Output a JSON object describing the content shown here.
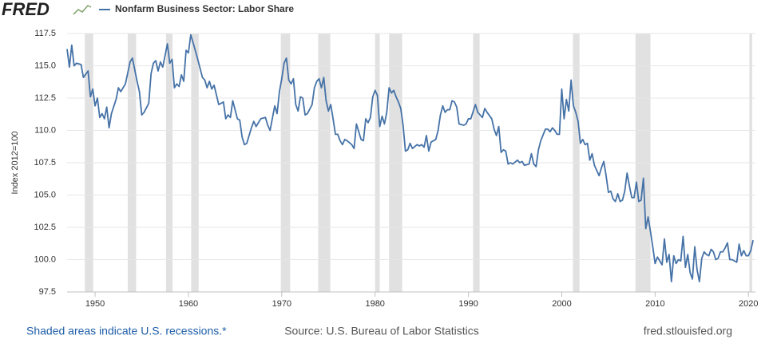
{
  "logo": "FRED",
  "footer": {
    "note": "Shaded areas indicate U.S. recessions.*",
    "source": "Source: U.S. Bureau of Labor Statistics",
    "site": "fred.stlouisfed.org"
  },
  "chart_data": {
    "type": "line",
    "y_label": "Index 2012=100",
    "x": [
      1947,
      1947.25,
      1947.5,
      1947.75,
      1948,
      1948.5,
      1948.75,
      1949.25,
      1949.5,
      1949.75,
      1950,
      1950.25,
      1950.5,
      1950.75,
      1951,
      1951.25,
      1951.5,
      1951.75,
      1952.25,
      1952.5,
      1952.75,
      1953.25,
      1953.75,
      1954,
      1954.5,
      1954.75,
      1955,
      1955.25,
      1955.75,
      1956,
      1956.25,
      1956.5,
      1956.75,
      1957,
      1957.25,
      1957.75,
      1958,
      1958.25,
      1958.5,
      1958.75,
      1959,
      1959.25,
      1959.5,
      1959.75,
      1960,
      1960.25,
      1960.5,
      1961,
      1961.5,
      1961.75,
      1962,
      1962.25,
      1962.5,
      1962.75,
      1963.25,
      1963.75,
      1964,
      1964.25,
      1964.5,
      1964.75,
      1965.25,
      1965.5,
      1965.75,
      1966,
      1966.25,
      1966.75,
      1967,
      1967.25,
      1967.75,
      1968.25,
      1968.5,
      1968.75,
      1969.25,
      1969.5,
      1969.75,
      1970,
      1970.25,
      1970.5,
      1970.75,
      1971,
      1971.25,
      1971.5,
      1971.75,
      1972,
      1972.25,
      1972.5,
      1972.75,
      1973.25,
      1973.5,
      1973.75,
      1974,
      1974.25,
      1974.5,
      1974.75,
      1975,
      1975.25,
      1975.5,
      1975.75,
      1976,
      1976.25,
      1976.5,
      1976.75,
      1977,
      1977.5,
      1977.75,
      1978,
      1978.5,
      1978.75,
      1979,
      1979.25,
      1979.5,
      1979.75,
      1980,
      1980.25,
      1980.5,
      1980.75,
      1981,
      1981.25,
      1981.5,
      1981.75,
      1982,
      1982.25,
      1982.5,
      1982.75,
      1983,
      1983.25,
      1983.5,
      1983.75,
      1984,
      1984.5,
      1984.75,
      1985,
      1985.25,
      1985.5,
      1985.75,
      1986,
      1986.5,
      1986.75,
      1987,
      1987.25,
      1987.5,
      1987.75,
      1988,
      1988.25,
      1988.5,
      1988.75,
      1989,
      1989.5,
      1989.75,
      1990,
      1990.25,
      1990.75,
      1991,
      1991.25,
      1991.5,
      1991.75,
      1992,
      1992.5,
      1992.75,
      1993,
      1993.25,
      1993.5,
      1993.75,
      1994,
      1994.25,
      1994.5,
      1994.75,
      1995.25,
      1995.5,
      1995.75,
      1996,
      1996.5,
      1996.75,
      1997,
      1997.25,
      1997.5,
      1997.75,
      1998.25,
      1998.5,
      1998.75,
      1999,
      1999.25,
      1999.5,
      1999.75,
      2000,
      2000.25,
      2000.5,
      2000.75,
      2001,
      2001.25,
      2001.5,
      2001.75,
      2002,
      2002.25,
      2002.5,
      2002.75,
      2003,
      2003.25,
      2003.5,
      2003.75,
      2004,
      2004.25,
      2004.5,
      2004.75,
      2005,
      2005.25,
      2005.5,
      2005.75,
      2006,
      2006.25,
      2006.5,
      2006.75,
      2007,
      2007.25,
      2007.5,
      2007.75,
      2008,
      2008.25,
      2008.5,
      2008.75,
      2009,
      2009.25,
      2009.5,
      2009.75,
      2010,
      2010.25,
      2010.5,
      2010.75,
      2011,
      2011.25,
      2011.5,
      2011.75,
      2012,
      2012.25,
      2012.5,
      2012.75,
      2013,
      2013.25,
      2013.5,
      2013.75,
      2014,
      2014.25,
      2014.5,
      2014.75,
      2015,
      2015.25,
      2015.5,
      2015.75,
      2016,
      2016.25,
      2016.5,
      2016.75,
      2017,
      2017.25,
      2017.5,
      2017.75,
      2018,
      2018.25,
      2018.5,
      2018.75,
      2019,
      2019.25,
      2019.5,
      2019.75,
      2020,
      2020.25,
      2020.5
    ],
    "series": [
      {
        "name": "Nonfarm Business Sector: Labor Share",
        "color": "#4572a7",
        "values": [
          116.3,
          114.9,
          116.6,
          115.0,
          115.2,
          115.1,
          114.1,
          114.6,
          112.6,
          113.2,
          111.9,
          112.5,
          111.0,
          111.3,
          110.9,
          111.8,
          110.2,
          111.3,
          112.4,
          113.3,
          113.0,
          113.6,
          115.3,
          115.6,
          113.8,
          113.0,
          111.2,
          111.4,
          112.1,
          114.4,
          115.2,
          115.4,
          114.6,
          115.3,
          114.9,
          116.7,
          115.2,
          115.5,
          113.3,
          113.6,
          113.4,
          114.3,
          113.8,
          116.2,
          116.0,
          117.4,
          116.8,
          115.5,
          114.1,
          113.9,
          113.3,
          113.8,
          113.2,
          113.5,
          112.0,
          112.2,
          110.9,
          111.2,
          111.0,
          112.3,
          110.9,
          110.8,
          109.5,
          108.9,
          109.0,
          110.2,
          110.7,
          110.3,
          110.9,
          111.0,
          110.4,
          110.0,
          111.9,
          111.3,
          113.0,
          114.0,
          115.2,
          115.6,
          113.9,
          113.6,
          114.0,
          112.0,
          111.5,
          112.6,
          112.5,
          111.2,
          111.3,
          112.0,
          113.3,
          113.8,
          114.0,
          113.3,
          114.1,
          112.3,
          111.5,
          112.0,
          110.9,
          109.7,
          109.7,
          109.2,
          108.9,
          109.3,
          109.2,
          108.9,
          108.6,
          110.5,
          109.3,
          109.2,
          110.9,
          110.6,
          111.0,
          112.6,
          113.1,
          112.7,
          110.3,
          111.1,
          110.5,
          111.4,
          113.3,
          112.9,
          113.1,
          112.6,
          112.2,
          111.7,
          110.4,
          108.4,
          108.5,
          109.0,
          108.6,
          108.9,
          108.8,
          108.9,
          108.7,
          109.6,
          108.4,
          109.1,
          109.3,
          110.0,
          111.2,
          111.9,
          111.4,
          111.6,
          111.6,
          112.3,
          112.2,
          111.8,
          110.5,
          110.4,
          110.5,
          110.9,
          110.9,
          112.0,
          111.4,
          111.2,
          111.0,
          111.7,
          111.4,
          110.9,
          110.1,
          109.6,
          110.3,
          108.3,
          108.5,
          108.4,
          107.4,
          107.5,
          107.4,
          107.7,
          107.5,
          107.6,
          107.3,
          107.4,
          108.2,
          107.4,
          107.2,
          108.5,
          109.2,
          110.1,
          110.1,
          109.9,
          110.2,
          110.0,
          109.7,
          109.7,
          113.2,
          110.9,
          112.4,
          111.5,
          113.9,
          111.9,
          111.4,
          110.7,
          109.0,
          109.3,
          108.9,
          109.0,
          107.7,
          108.2,
          107.3,
          106.9,
          106.5,
          107.1,
          107.6,
          106.5,
          105.2,
          105.3,
          104.7,
          104.5,
          105.1,
          104.5,
          104.6,
          105.3,
          106.7,
          105.7,
          104.8,
          104.8,
          106.0,
          104.5,
          104.6,
          106.3,
          102.4,
          103.3,
          102.2,
          101.0,
          99.7,
          100.2,
          99.9,
          99.6,
          101.6,
          99.8,
          100.4,
          98.3,
          100.3,
          99.7,
          100.0,
          99.9,
          101.8,
          99.4,
          100.4,
          99.0,
          98.5,
          101.0,
          99.2,
          98.3,
          100.1,
          100.6,
          100.4,
          100.3,
          100.8,
          100.6,
          100.0,
          100.1,
          100.6,
          100.6,
          100.9,
          101.3,
          100.0,
          100.0,
          99.9,
          99.8,
          101.2,
          100.3,
          100.7,
          100.3,
          100.3,
          100.7,
          101.5
        ]
      }
    ],
    "recessions": [
      [
        1948.9,
        1949.8
      ],
      [
        1953.5,
        1954.4
      ],
      [
        1957.6,
        1958.3
      ],
      [
        1960.3,
        1961.1
      ],
      [
        1969.9,
        1970.9
      ],
      [
        1973.9,
        1975.2
      ],
      [
        1980.0,
        1980.5
      ],
      [
        1981.5,
        1982.9
      ],
      [
        1990.5,
        1991.2
      ],
      [
        2001.2,
        2001.9
      ],
      [
        2007.9,
        2009.5
      ],
      [
        2020.1,
        2020.4
      ]
    ],
    "recession_color": "#e1e1e1",
    "xlim": [
      1947,
      2020.75
    ],
    "xticks": [
      1950,
      1960,
      1970,
      1980,
      1990,
      2000,
      2010,
      2020
    ],
    "ylim": [
      97.5,
      117.5
    ],
    "yticks": [
      97.5,
      {
        "value": 100,
        "label": "100.0"
      },
      102.5,
      {
        "value": 105,
        "label": "105.0"
      },
      107.5,
      {
        "value": 110,
        "label": "110.0"
      },
      112.5,
      {
        "value": 115,
        "label": "115.0"
      },
      117.5
    ],
    "grid": true
  }
}
